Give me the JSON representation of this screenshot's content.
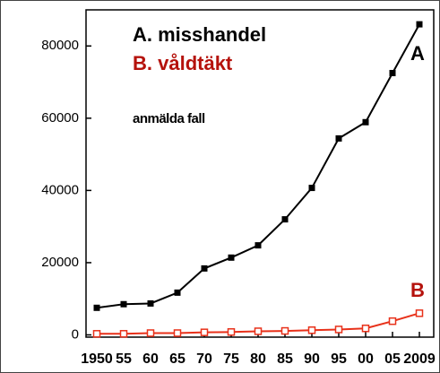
{
  "chart_data": {
    "type": "line",
    "subtitle": "anmälda fall",
    "categories": [
      "1950",
      "55",
      "60",
      "65",
      "70",
      "75",
      "80",
      "85",
      "90",
      "95",
      "00",
      "05",
      "2009"
    ],
    "series": [
      {
        "name": "A. misshandel",
        "color": "#000000",
        "label_color": "#000000",
        "marker": "filled",
        "label": "A",
        "values": [
          7500,
          8500,
          8700,
          11700,
          18400,
          21400,
          24800,
          32000,
          40700,
          54400,
          58900,
          72500,
          86000
        ]
      },
      {
        "name": "B. våldtäkt",
        "color": "#e8311a",
        "label_color": "#b5120c",
        "marker": "hollow",
        "label": "B",
        "values": [
          300,
          300,
          500,
          500,
          700,
          800,
          1000,
          1100,
          1300,
          1500,
          1800,
          3800,
          6000
        ]
      }
    ],
    "ylim": [
      0,
      90000
    ],
    "yticks": [
      0,
      20000,
      40000,
      60000,
      80000
    ]
  }
}
